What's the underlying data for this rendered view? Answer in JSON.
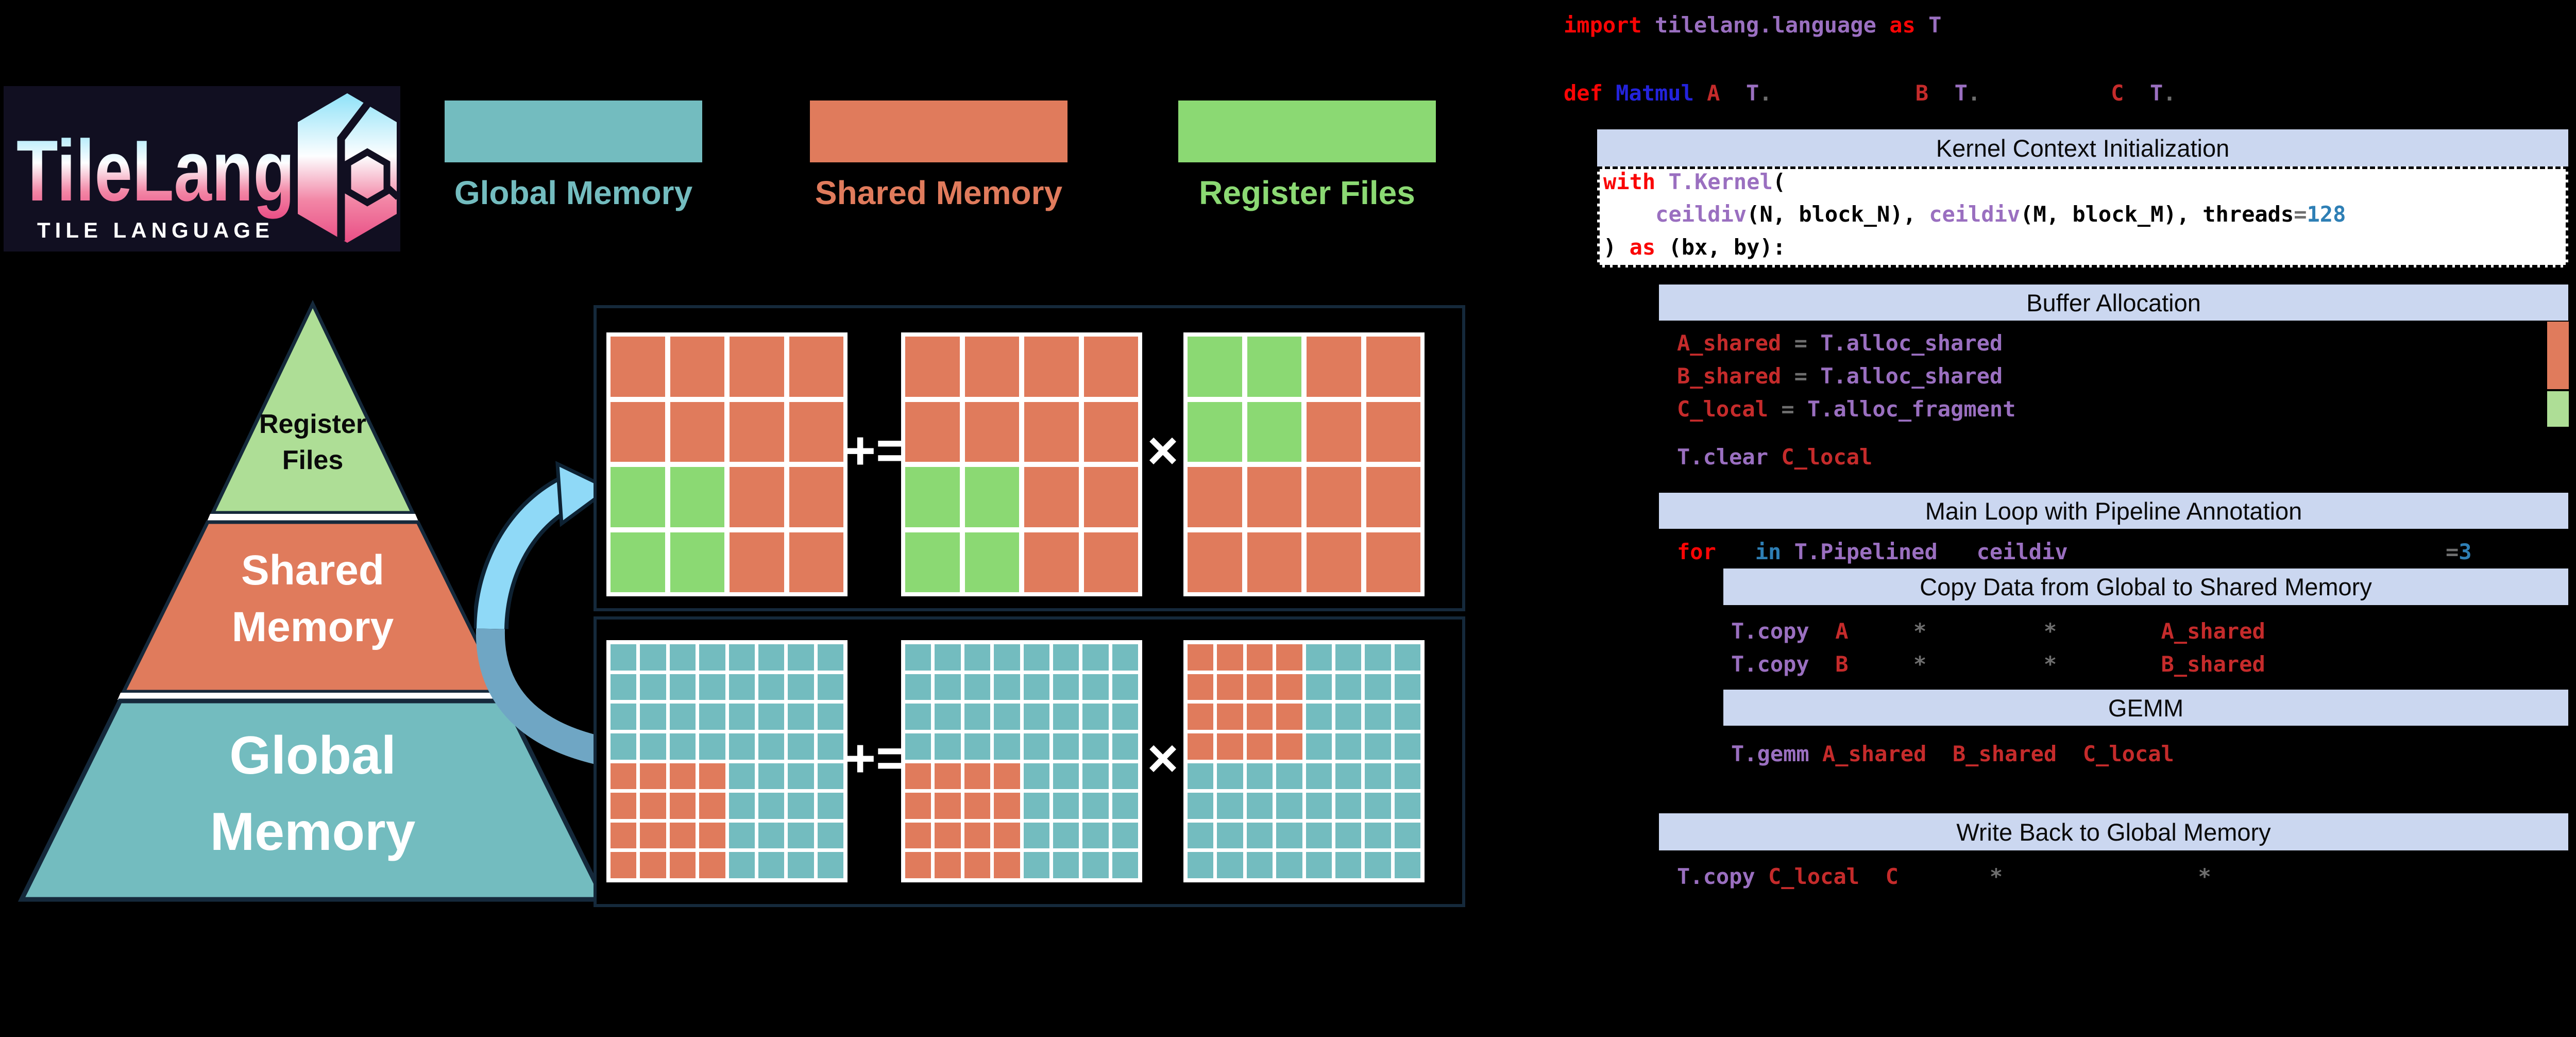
{
  "colors": {
    "black": "#000000",
    "salmon": "#E07B5C",
    "teal": "#73BCBF",
    "green": "#8BD973",
    "pale_green": "#AEDE96",
    "lavender": "#CBD7F0",
    "navy_border": "#15293B",
    "logo_bg": "#110F21",
    "arrow_light": "#8FD9F7",
    "arrow_steel": "#6FA6C4",
    "code_red": "#FA0505",
    "code_purple": "#9A6FC0",
    "code_blue": "#2323DC",
    "code_steel": "#2E7FB5",
    "code_crimson": "#C52B2B",
    "code_gray": "#6E6E6E",
    "white": "#FFFFFF"
  },
  "logo": {
    "title": "TileLang",
    "subtitle": "TILE LANGUAGE"
  },
  "legend": {
    "items": [
      {
        "label": "Global Memory",
        "color_key": "teal"
      },
      {
        "label": "Shared Memory",
        "color_key": "salmon"
      },
      {
        "label": "Register Files",
        "color_key": "green"
      }
    ]
  },
  "pyramid": {
    "levels": [
      {
        "name": "register-files",
        "lines": [
          "Register",
          "Files"
        ]
      },
      {
        "name": "shared-memory",
        "lines": [
          "Shared",
          "Memory"
        ]
      },
      {
        "name": "global-memory",
        "lines": [
          "Global",
          "Memory"
        ]
      }
    ]
  },
  "tile_math": {
    "operators": {
      "accumulate": "+=",
      "multiply": "×"
    },
    "register_row": {
      "grids": [
        {
          "rows": 4,
          "cols": 4,
          "base": "salmon",
          "highlight": {
            "color": "green",
            "r0": 2,
            "c0": 0,
            "r1": 3,
            "c1": 1
          }
        },
        {
          "rows": 4,
          "cols": 4,
          "base": "salmon",
          "highlight": {
            "color": "green",
            "r0": 2,
            "c0": 0,
            "r1": 3,
            "c1": 1
          }
        },
        {
          "rows": 4,
          "cols": 4,
          "base": "salmon",
          "highlight": {
            "color": "green",
            "r0": 0,
            "c0": 0,
            "r1": 1,
            "c1": 1
          }
        }
      ]
    },
    "global_row": {
      "grids": [
        {
          "rows": 8,
          "cols": 8,
          "base": "teal",
          "highlight": {
            "color": "salmon",
            "r0": 4,
            "c0": 0,
            "r1": 7,
            "c1": 3
          }
        },
        {
          "rows": 8,
          "cols": 8,
          "base": "teal",
          "highlight": {
            "color": "salmon",
            "r0": 4,
            "c0": 0,
            "r1": 7,
            "c1": 3
          }
        },
        {
          "rows": 8,
          "cols": 8,
          "base": "teal",
          "highlight": {
            "color": "salmon",
            "r0": 0,
            "c0": 0,
            "r1": 3,
            "c1": 3
          }
        }
      ]
    }
  },
  "code_panel": {
    "sections": {
      "kernel": "Kernel Context Initialization",
      "buffer": "Buffer Allocation",
      "main_loop": "Main Loop with Pipeline Annotation",
      "copy": "Copy Data from Global to Shared Memory",
      "gemm": "GEMM",
      "writeback": "Write Back to Global Memory"
    },
    "lines": [
      {
        "segments": [
          [
            "code_red",
            "import"
          ],
          [
            "black",
            " "
          ],
          [
            "code_purple",
            "tilelang.language"
          ],
          [
            "black",
            " "
          ],
          [
            "code_red",
            "as"
          ],
          [
            "black",
            " "
          ],
          [
            "code_purple",
            "T"
          ]
        ]
      },
      {
        "segments": [
          [
            "code_red",
            "def"
          ],
          [
            "black",
            " "
          ],
          [
            "code_blue",
            "Matmul"
          ],
          [
            "black",
            " "
          ],
          [
            "code_crimson",
            "A"
          ],
          [
            "black",
            "  "
          ],
          [
            "code_purple",
            "T"
          ],
          [
            "code_gray",
            "."
          ],
          [
            "black",
            "           "
          ],
          [
            "code_crimson",
            "B"
          ],
          [
            "black",
            "  "
          ],
          [
            "code_purple",
            "T"
          ],
          [
            "code_gray",
            "."
          ],
          [
            "black",
            "          "
          ],
          [
            "code_crimson",
            "C"
          ],
          [
            "black",
            "  "
          ],
          [
            "code_purple",
            "T"
          ],
          [
            "code_gray",
            "."
          ]
        ]
      },
      {
        "segments": [
          [
            "code_red",
            "with"
          ],
          [
            "black",
            " "
          ],
          [
            "code_purple",
            "T.Kernel"
          ],
          [
            "black",
            "("
          ]
        ]
      },
      {
        "segments": [
          [
            "black",
            "    "
          ],
          [
            "code_purple",
            "ceildiv"
          ],
          [
            "black",
            "(N, block_N), "
          ],
          [
            "code_purple",
            "ceildiv"
          ],
          [
            "black",
            "(M, block_M), threads"
          ],
          [
            "code_gray",
            "="
          ],
          [
            "code_steel",
            "128"
          ]
        ]
      },
      {
        "segments": [
          [
            "black",
            ") "
          ],
          [
            "code_red",
            "as"
          ],
          [
            "black",
            " (bx, by):"
          ]
        ]
      },
      {
        "segments": [
          [
            "code_crimson",
            "A_shared"
          ],
          [
            "black",
            " "
          ],
          [
            "code_gray",
            "="
          ],
          [
            "black",
            " "
          ],
          [
            "code_purple",
            "T.alloc_shared"
          ]
        ]
      },
      {
        "segments": [
          [
            "code_crimson",
            "B_shared"
          ],
          [
            "black",
            " "
          ],
          [
            "code_gray",
            "="
          ],
          [
            "black",
            " "
          ],
          [
            "code_purple",
            "T.alloc_shared"
          ]
        ]
      },
      {
        "segments": [
          [
            "code_crimson",
            "C_local"
          ],
          [
            "black",
            " "
          ],
          [
            "code_gray",
            "="
          ],
          [
            "black",
            " "
          ],
          [
            "code_purple",
            "T.alloc_fragment"
          ]
        ]
      },
      {
        "segments": [
          [
            "code_purple",
            "T.clear"
          ],
          [
            "black",
            " "
          ],
          [
            "code_crimson",
            "C_local"
          ]
        ]
      },
      {
        "segments": [
          [
            "code_red",
            "for"
          ],
          [
            "black",
            "   "
          ],
          [
            "code_steel",
            "in"
          ],
          [
            "black",
            " "
          ],
          [
            "code_purple",
            "T.Pipelined"
          ],
          [
            "black",
            "   "
          ],
          [
            "code_purple",
            "ceildiv"
          ],
          [
            "black",
            "                             "
          ],
          [
            "code_gray",
            "="
          ],
          [
            "code_steel",
            "3"
          ]
        ]
      },
      {
        "segments": [
          [
            "code_purple",
            "T.copy"
          ],
          [
            "black",
            "  "
          ],
          [
            "code_crimson",
            "A"
          ],
          [
            "black",
            "     "
          ],
          [
            "code_gray",
            "*"
          ],
          [
            "black",
            "         "
          ],
          [
            "code_gray",
            "*"
          ],
          [
            "black",
            "        "
          ],
          [
            "code_crimson",
            "A_shared"
          ]
        ]
      },
      {
        "segments": [
          [
            "code_purple",
            "T.copy"
          ],
          [
            "black",
            "  "
          ],
          [
            "code_crimson",
            "B"
          ],
          [
            "black",
            "     "
          ],
          [
            "code_gray",
            "*"
          ],
          [
            "black",
            "         "
          ],
          [
            "code_gray",
            "*"
          ],
          [
            "black",
            "        "
          ],
          [
            "code_crimson",
            "B_shared"
          ]
        ]
      },
      {
        "segments": [
          [
            "code_purple",
            "T.gemm"
          ],
          [
            "black",
            " "
          ],
          [
            "code_crimson",
            "A_shared"
          ],
          [
            "black",
            "  "
          ],
          [
            "code_crimson",
            "B_shared"
          ],
          [
            "black",
            "  "
          ],
          [
            "code_crimson",
            "C_local"
          ]
        ]
      },
      {
        "segments": [
          [
            "code_purple",
            "T.copy"
          ],
          [
            "black",
            " "
          ],
          [
            "code_crimson",
            "C_local"
          ],
          [
            "black",
            "  "
          ],
          [
            "code_crimson",
            "C"
          ],
          [
            "black",
            "       "
          ],
          [
            "code_gray",
            "*"
          ],
          [
            "black",
            "               "
          ],
          [
            "code_gray",
            "*"
          ]
        ]
      }
    ],
    "indicator_bars": [
      {
        "name": "shared-memory-indicator-bar",
        "color_key": "salmon"
      },
      {
        "name": "register-file-indicator-bar",
        "color_key": "pale_green"
      }
    ]
  }
}
